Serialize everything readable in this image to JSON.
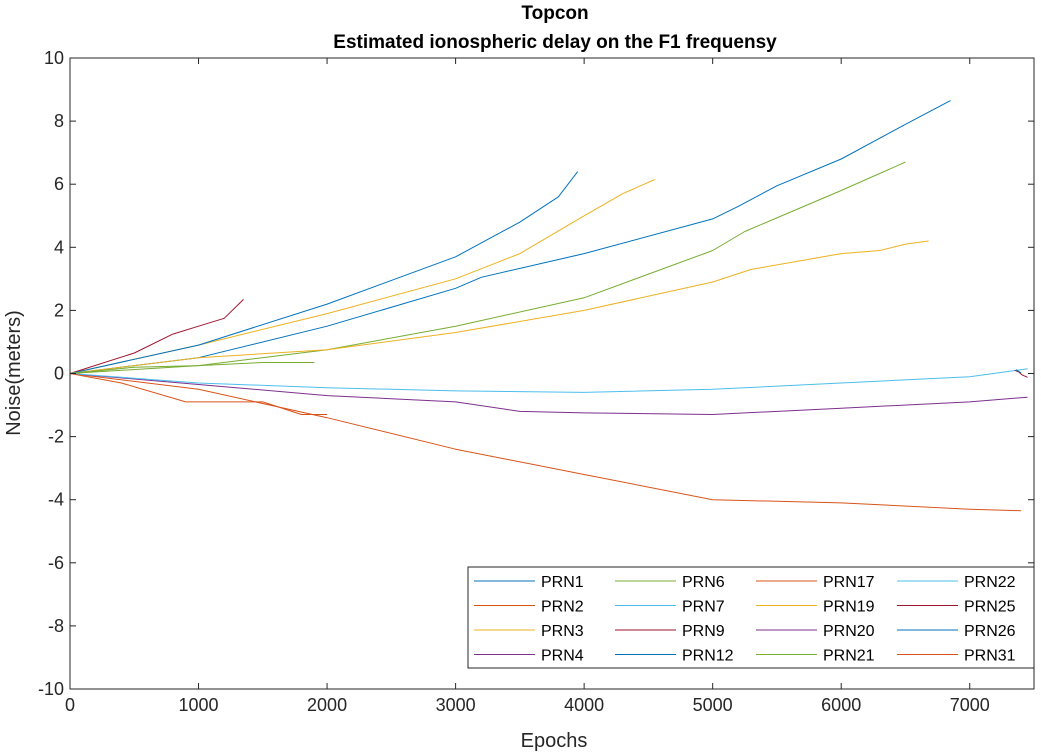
{
  "chart_data": {
    "type": "line",
    "title": "Topcon",
    "subtitle": "Estimated ionospheric delay on the F1 frequensy",
    "xlabel": "Epochs",
    "ylabel": "Noise(meters)",
    "xlim": [
      0,
      7500
    ],
    "ylim": [
      -10,
      10
    ],
    "xticks": [
      0,
      1000,
      2000,
      3000,
      4000,
      5000,
      6000,
      7000
    ],
    "yticks": [
      10,
      8,
      6,
      4,
      2,
      0,
      -2,
      -4,
      -6,
      -8,
      -10
    ],
    "grid": false,
    "legend_position": "bottom-right",
    "legend_columns": 4,
    "series": [
      {
        "name": "PRN1",
        "color": "#0072BD",
        "points": [
          [
            0,
            0
          ],
          [
            1000,
            0.5
          ],
          [
            2000,
            1.5
          ],
          [
            3000,
            2.7
          ],
          [
            3200,
            3.05
          ],
          [
            4000,
            3.8
          ],
          [
            5000,
            4.9
          ],
          [
            5200,
            5.3
          ],
          [
            5500,
            5.95
          ],
          [
            6000,
            6.8
          ],
          [
            6500,
            7.9
          ],
          [
            6850,
            8.65
          ]
        ]
      },
      {
        "name": "PRN2",
        "color": "#D95319",
        "points": [
          [
            0,
            0
          ],
          [
            1000,
            -0.5
          ],
          [
            2000,
            -1.4
          ],
          [
            3000,
            -2.4
          ],
          [
            4000,
            -3.2
          ],
          [
            5000,
            -4.0
          ],
          [
            6000,
            -4.1
          ],
          [
            7000,
            -4.3
          ],
          [
            7400,
            -4.35
          ]
        ]
      },
      {
        "name": "PRN3",
        "color": "#EDB120",
        "points": [
          [
            0,
            0
          ],
          [
            1000,
            0.9
          ],
          [
            2000,
            1.9
          ],
          [
            3000,
            3.0
          ],
          [
            3500,
            3.8
          ],
          [
            4000,
            5.0
          ],
          [
            4300,
            5.7
          ],
          [
            4550,
            6.15
          ]
        ]
      },
      {
        "name": "PRN4",
        "color": "#7E2F8E",
        "points": [
          [
            0,
            0
          ],
          [
            1000,
            -0.35
          ],
          [
            2000,
            -0.7
          ],
          [
            3000,
            -0.9
          ],
          [
            3500,
            -1.2
          ],
          [
            4000,
            -1.25
          ],
          [
            5000,
            -1.3
          ],
          [
            6000,
            -1.1
          ],
          [
            7000,
            -0.9
          ],
          [
            7450,
            -0.75
          ]
        ]
      },
      {
        "name": "PRN6",
        "color": "#77AC30",
        "points": [
          [
            0,
            0
          ],
          [
            1000,
            0.25
          ],
          [
            2000,
            0.75
          ],
          [
            3000,
            1.5
          ],
          [
            4000,
            2.4
          ],
          [
            5000,
            3.9
          ],
          [
            5250,
            4.5
          ],
          [
            6000,
            5.8
          ],
          [
            6500,
            6.7
          ]
        ]
      },
      {
        "name": "PRN7",
        "color": "#4DBEEE",
        "points": [
          [
            0,
            0
          ],
          [
            1000,
            -0.3
          ],
          [
            2000,
            -0.45
          ],
          [
            3000,
            -0.55
          ],
          [
            4000,
            -0.6
          ],
          [
            5000,
            -0.5
          ],
          [
            6000,
            -0.3
          ],
          [
            7000,
            -0.1
          ],
          [
            7450,
            0.15
          ]
        ]
      },
      {
        "name": "PRN9",
        "color": "#A2142F",
        "points": [
          [
            0,
            0
          ],
          [
            500,
            0.65
          ],
          [
            800,
            1.25
          ],
          [
            1000,
            1.5
          ],
          [
            1200,
            1.75
          ],
          [
            1350,
            2.35
          ]
        ]
      },
      {
        "name": "PRN12",
        "color": "#0072BD",
        "points": [
          [
            0,
            0
          ],
          [
            1000,
            0.9
          ],
          [
            2000,
            2.2
          ],
          [
            3000,
            3.7
          ],
          [
            3500,
            4.8
          ],
          [
            3800,
            5.6
          ],
          [
            3950,
            6.4
          ]
        ]
      },
      {
        "name": "PRN17",
        "color": "#D95319",
        "points": [
          [
            0,
            0
          ],
          [
            400,
            -0.3
          ],
          [
            900,
            -0.9
          ],
          [
            1500,
            -0.9
          ],
          [
            1800,
            -1.3
          ],
          [
            2000,
            -1.3
          ]
        ]
      },
      {
        "name": "PRN19",
        "color": "#EDB120",
        "points": [
          [
            0,
            0
          ],
          [
            1000,
            0.5
          ],
          [
            2000,
            0.75
          ],
          [
            3000,
            1.3
          ],
          [
            4000,
            2.0
          ],
          [
            5000,
            2.9
          ],
          [
            5300,
            3.3
          ],
          [
            6000,
            3.8
          ],
          [
            6300,
            3.9
          ],
          [
            6500,
            4.1
          ],
          [
            6680,
            4.2
          ]
        ]
      },
      {
        "name": "PRN20",
        "color": "#7E2F8E",
        "points": []
      },
      {
        "name": "PRN21",
        "color": "#77AC30",
        "points": [
          [
            0,
            0
          ],
          [
            500,
            0.2
          ],
          [
            1000,
            0.25
          ],
          [
            1500,
            0.35
          ],
          [
            1900,
            0.35
          ]
        ]
      },
      {
        "name": "PRN22",
        "color": "#4DBEEE",
        "points": []
      },
      {
        "name": "PRN25",
        "color": "#A2142F",
        "points": [
          [
            7350,
            0.1
          ],
          [
            7380,
            0.05
          ],
          [
            7410,
            -0.05
          ],
          [
            7450,
            -0.12
          ]
        ]
      },
      {
        "name": "PRN26",
        "color": "#0072BD",
        "points": [
          [
            7360,
            0.12
          ],
          [
            7400,
            0.02
          ]
        ]
      },
      {
        "name": "PRN31",
        "color": "#D95319",
        "points": []
      }
    ]
  }
}
